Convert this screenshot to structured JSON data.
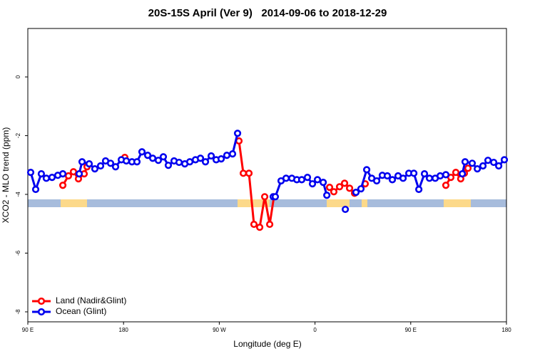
{
  "chart_data": {
    "type": "line",
    "title": "20S-15S April (Ver 9)   2014-09-06 to 2018-12-29",
    "xlabel": "Longitude (deg E)",
    "ylabel": "XCO2 - MLO trend (ppm)",
    "xlim": [
      90,
      540
    ],
    "ylim": [
      -8.34,
      1.65
    ],
    "xticks": [
      {
        "value": 90,
        "label": "90 E"
      },
      180,
      {
        "value": 270,
        "label": "90 W"
      },
      {
        "value": 360,
        "label": "0"
      },
      {
        "value": 450,
        "label": "90 E"
      },
      {
        "value": 540,
        "label": "180"
      }
    ],
    "yticks": [
      0,
      -2,
      -4,
      -6,
      -8
    ],
    "legend": "bottom-left",
    "series": [
      {
        "name": "Land (Nadir&Glint)",
        "color": "#ff0000",
        "x": [
          122.9,
          128.2,
          132.9,
          137.6,
          143.0,
          145.7,
          163,
          181.2,
          235,
          288.5,
          292.6,
          297.9,
          302.6,
          308.0,
          312.7,
          317.4,
          321.4,
          347,
          373.7,
          377.7,
          383.1,
          387.8,
          392.5,
          397.2,
          407.2,
          445,
          483.0,
          487.7,
          492.4,
          497.0,
          500.4,
          503.8
        ],
        "values": [
          -3.69,
          -3.37,
          -3.23,
          -3.47,
          -3.3,
          -3.06,
          null,
          -2.74,
          null,
          -2.18,
          -3.28,
          -3.28,
          -5.02,
          -5.12,
          -4.08,
          -5.02,
          -4.08,
          null,
          -3.76,
          -3.91,
          -3.74,
          -3.62,
          -3.79,
          -3.96,
          -3.64,
          null,
          -3.69,
          -3.42,
          -3.25,
          -3.47,
          -3.28,
          -3.11
        ]
      },
      {
        "name": "Ocean (Glint)",
        "color": "#0000ee",
        "x": [
          92.7,
          97.4,
          102.7,
          107.4,
          112.8,
          118.2,
          122.9,
          130,
          138.3,
          141.0,
          147.7,
          153.0,
          158.4,
          163.1,
          167.8,
          172.5,
          177.9,
          182.6,
          187.9,
          192.6,
          197.3,
          202.7,
          207.4,
          212.7,
          217.4,
          222.1,
          227.5,
          232.2,
          237.6,
          242.3,
          247.6,
          252.3,
          257.0,
          262.4,
          267.1,
          271.8,
          277.1,
          282.5,
          287.2,
          305,
          320.7,
          322.7,
          328.1,
          332.8,
          338.2,
          342.9,
          347.5,
          352.9,
          357.6,
          362.3,
          367.7,
          371.1,
          380,
          388.5,
          393,
          398.5,
          403.2,
          408.6,
          413.3,
          418.0,
          423.3,
          428.0,
          432.7,
          438.1,
          442.8,
          448.2,
          452.9,
          457.6,
          462.9,
          467.6,
          473.0,
          477.7,
          483.0,
          490,
          498.5,
          501.1,
          507.8,
          512.6,
          517.9,
          522.6,
          528.0,
          532.7,
          538.0
        ],
        "values": [
          -3.25,
          -3.83,
          -3.3,
          -3.45,
          -3.42,
          -3.35,
          -3.3,
          null,
          -3.3,
          -2.89,
          -2.96,
          -3.13,
          -3.03,
          -2.86,
          -2.94,
          -3.06,
          -2.82,
          -2.86,
          -2.89,
          -2.89,
          -2.55,
          -2.67,
          -2.77,
          -2.84,
          -2.72,
          -3.01,
          -2.86,
          -2.91,
          -2.96,
          -2.89,
          -2.82,
          -2.77,
          -2.89,
          -2.69,
          -2.82,
          -2.79,
          -2.67,
          -2.62,
          -1.92,
          null,
          -4.08,
          -4.08,
          -3.54,
          -3.45,
          -3.45,
          -3.5,
          -3.5,
          -3.42,
          -3.64,
          -3.5,
          -3.59,
          -4.03,
          null,
          -4.51,
          null,
          -3.93,
          -3.81,
          -3.16,
          -3.45,
          -3.54,
          -3.35,
          -3.37,
          -3.5,
          -3.37,
          -3.45,
          -3.28,
          -3.28,
          -3.83,
          -3.3,
          -3.45,
          -3.45,
          -3.37,
          -3.33,
          null,
          -3.3,
          -2.89,
          -2.94,
          -3.13,
          -3.03,
          -2.84,
          -2.91,
          -3.03,
          -2.82
        ]
      }
    ]
  }
}
